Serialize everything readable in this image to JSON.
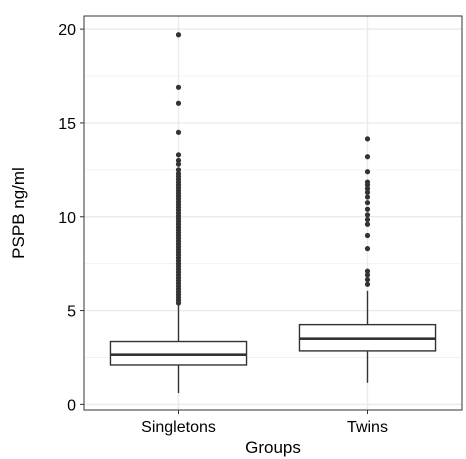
{
  "chart_data": {
    "type": "box",
    "title": "",
    "xlabel": "Groups",
    "ylabel": "PSPB ng/ml",
    "ylim": [
      -0.3,
      20.7
    ],
    "y_ticks": [
      0,
      5,
      10,
      15,
      20
    ],
    "y_tick_labels": [
      "0",
      "5",
      "10",
      "15",
      "20"
    ],
    "categories": [
      "Singletons",
      "Twins"
    ],
    "grid": true,
    "legend": "none",
    "boxes": [
      {
        "name": "Singletons",
        "whisker_low": 0.6,
        "q1": 2.1,
        "median": 2.65,
        "q3": 3.35,
        "whisker_high": 5.3,
        "outliers": [
          5.4,
          5.55,
          5.7,
          5.85,
          6.0,
          6.15,
          6.3,
          6.45,
          6.6,
          6.75,
          6.9,
          7.05,
          7.2,
          7.35,
          7.5,
          7.65,
          7.8,
          7.95,
          8.1,
          8.25,
          8.4,
          8.55,
          8.7,
          8.85,
          9.0,
          9.15,
          9.3,
          9.45,
          9.6,
          9.75,
          9.9,
          10.05,
          10.2,
          10.35,
          10.5,
          10.65,
          10.8,
          10.95,
          11.1,
          11.25,
          11.4,
          11.55,
          11.7,
          11.85,
          12.0,
          12.15,
          12.3,
          12.5,
          12.8,
          13.0,
          13.3,
          14.5,
          16.05,
          16.9,
          19.7
        ]
      },
      {
        "name": "Twins",
        "whisker_low": 1.15,
        "q1": 2.85,
        "median": 3.5,
        "q3": 4.25,
        "whisker_high": 6.05,
        "outliers": [
          6.4,
          6.65,
          6.9,
          7.1,
          8.3,
          9.0,
          9.6,
          9.85,
          10.1,
          10.4,
          10.75,
          11.05,
          11.3,
          11.5,
          11.7,
          11.85,
          12.4,
          13.2,
          14.15
        ]
      }
    ],
    "colors": {
      "box_stroke": "#333333",
      "point": "#333333",
      "grid_major": "#ebebeb",
      "grid_minor": "#f3f3f3",
      "panel_border": "#333333"
    }
  }
}
